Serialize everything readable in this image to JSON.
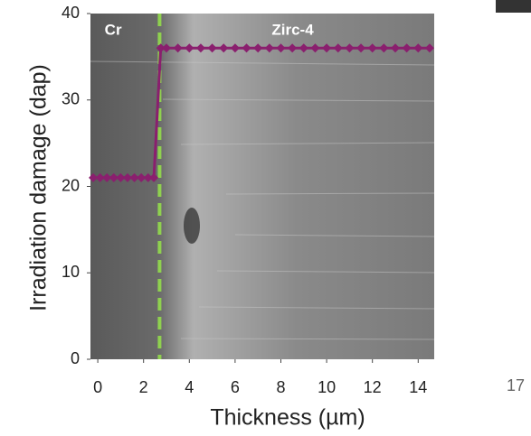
{
  "chart_data": {
    "type": "line",
    "xlabel": "Thickness (µm)",
    "ylabel": "Irradiation damage (dap)",
    "x": [
      -0.2,
      0.1,
      0.4,
      0.7,
      1.0,
      1.3,
      1.6,
      1.9,
      2.2,
      2.45,
      2.75,
      3.0,
      3.5,
      4.0,
      4.5,
      5.0,
      5.5,
      6.0,
      6.5,
      7.0,
      7.5,
      8.0,
      8.5,
      9.0,
      9.5,
      10.0,
      10.5,
      11.0,
      11.5,
      12.0,
      12.5,
      13.0,
      13.5,
      14.0,
      14.5
    ],
    "series": [
      {
        "color": "#8a1f6e",
        "values": [
          21,
          21,
          21,
          21,
          21,
          21,
          21,
          21,
          21,
          21,
          36,
          36,
          36,
          36,
          36,
          36,
          36,
          36,
          36,
          36,
          36,
          36,
          36,
          36,
          36,
          36,
          36,
          36,
          36,
          36,
          36,
          36,
          36,
          36,
          36
        ]
      }
    ],
    "xlim": [
      -0.32,
      14.7
    ],
    "ylim": [
      0,
      40
    ],
    "xticks": [
      0,
      2,
      4,
      6,
      8,
      10,
      12,
      14
    ],
    "yticks": [
      0,
      10,
      20,
      30,
      40
    ],
    "interface": {
      "x": 2.7,
      "color": "#8fd14f"
    },
    "annotations": [
      {
        "text": "Cr",
        "x": 0.3,
        "y": 38
      },
      {
        "text": "Zirc-4",
        "x": 7.6,
        "y": 38
      }
    ],
    "page_number": "17"
  }
}
